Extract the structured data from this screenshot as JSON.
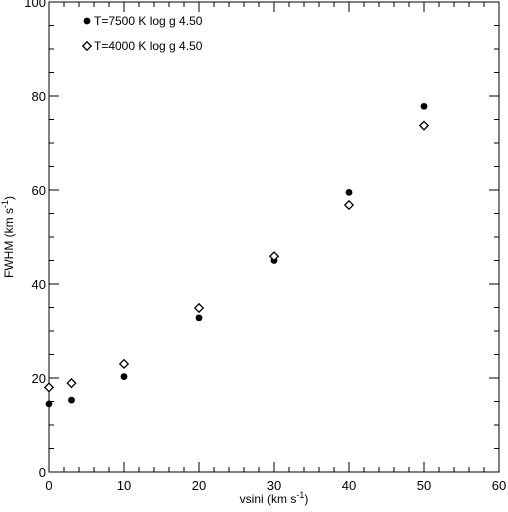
{
  "chart_data": {
    "type": "scatter",
    "xlabel": "vsini (km s",
    "xlabel_sup": "-1",
    "xlabel_end": ")",
    "ylabel": "FWHM (km s",
    "ylabel_sup": "-1",
    "ylabel_end": ")",
    "xlim": [
      0,
      60
    ],
    "ylim": [
      0,
      100
    ],
    "x_ticks": [
      0,
      10,
      20,
      30,
      40,
      50,
      60
    ],
    "y_ticks": [
      0,
      20,
      40,
      60,
      80,
      100
    ],
    "x_minor_step": 2,
    "y_minor_step": 5,
    "grid": false,
    "legend_position": "top-left",
    "series": [
      {
        "name": "T=7500 K   log g 4.50",
        "marker": "filled-circle",
        "color": "#000000",
        "points": [
          {
            "x": 0,
            "y": 14.5
          },
          {
            "x": 3,
            "y": 15.3
          },
          {
            "x": 10,
            "y": 20.3
          },
          {
            "x": 20,
            "y": 32.8
          },
          {
            "x": 30,
            "y": 45.0
          },
          {
            "x": 40,
            "y": 59.5
          },
          {
            "x": 50,
            "y": 77.8
          }
        ]
      },
      {
        "name": "T=4000 K   log g 4.50",
        "marker": "open-diamond",
        "color": "#000000",
        "points": [
          {
            "x": 0,
            "y": 18.0
          },
          {
            "x": 3,
            "y": 18.9
          },
          {
            "x": 10,
            "y": 23.0
          },
          {
            "x": 20,
            "y": 34.9
          },
          {
            "x": 30,
            "y": 45.9
          },
          {
            "x": 40,
            "y": 56.8
          },
          {
            "x": 50,
            "y": 73.7
          }
        ]
      }
    ]
  }
}
